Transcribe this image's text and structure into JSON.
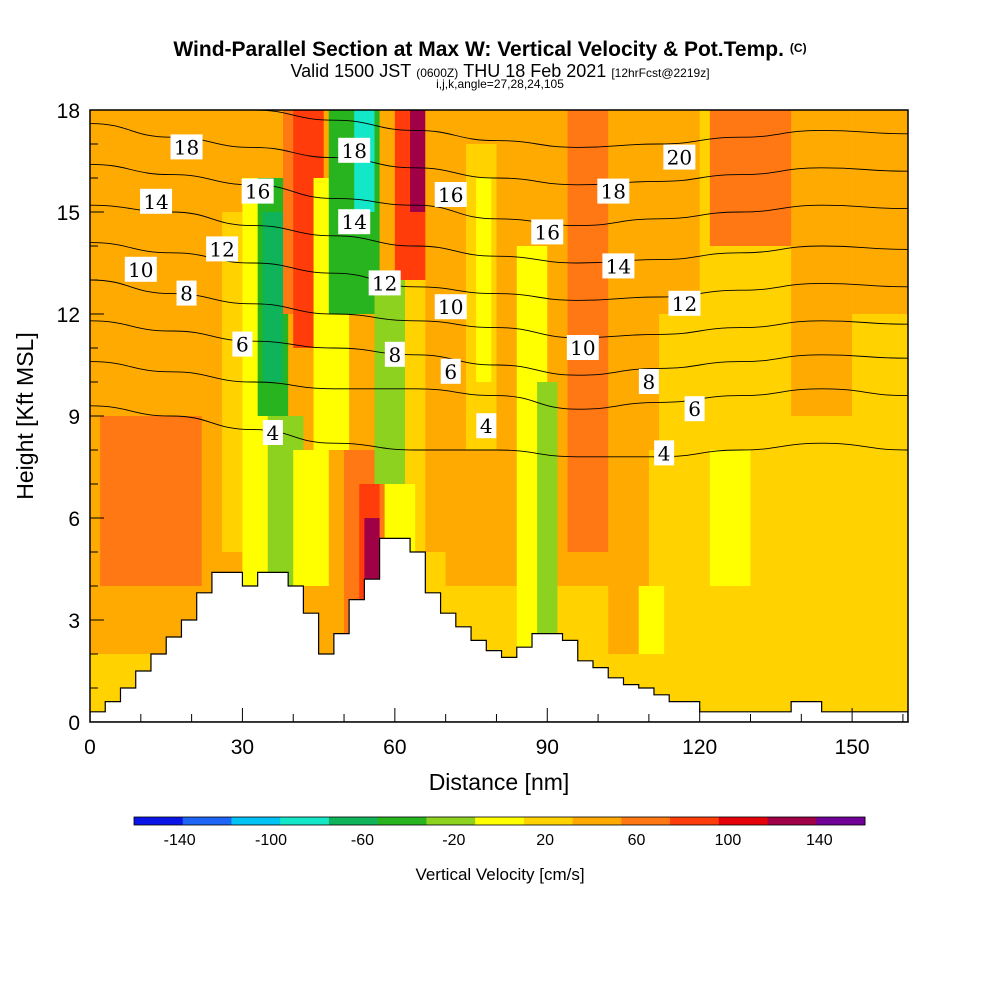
{
  "title": {
    "main": "Wind-Parallel Section at Max W: Vertical Velocity & Pot.Temp.",
    "main_suffix": "(C)",
    "valid_a": "Valid 1500 JST",
    "valid_b": "(0600Z)",
    "valid_c": "THU 18 Feb 2021",
    "valid_d": "[12hrFcst@2219z]",
    "indices": "i,j,k,angle=27,28,24,105"
  },
  "chart_data": {
    "type": "contour",
    "xlabel": "Distance [nm]",
    "ylabel": "Height [Kft MSL]",
    "xlim": [
      0,
      161
    ],
    "ylim": [
      0,
      18
    ],
    "x_ticks": [
      "0",
      "30",
      "60",
      "90",
      "120",
      "150"
    ],
    "y_ticks": [
      "0",
      "3",
      "6",
      "9",
      "12",
      "15",
      "18"
    ],
    "x_tick_values": [
      0,
      30,
      60,
      90,
      120,
      150
    ],
    "y_tick_values": [
      0,
      3,
      6,
      9,
      12,
      15,
      18
    ],
    "colorbar": {
      "label": "Vertical Velocity [cm/s]",
      "tick_labels": [
        "-140",
        "-100",
        "-60",
        "-20",
        "20",
        "60",
        "100",
        "140"
      ],
      "tick_values": [
        -140,
        -100,
        -60,
        -20,
        20,
        60,
        100,
        140
      ],
      "range": [
        -160,
        160
      ],
      "step": 20,
      "colors": [
        "#0a14e6",
        "#1e64f5",
        "#00c3f5",
        "#14e6c8",
        "#0fb45a",
        "#28b41e",
        "#8cd21e",
        "#ffff00",
        "#ffd200",
        "#ffaa00",
        "#ff7814",
        "#ff3c0a",
        "#e6000a",
        "#a00046",
        "#6e0096"
      ]
    },
    "terrain": {
      "x": [
        0,
        3,
        6,
        9,
        12,
        15,
        18,
        21,
        24,
        27,
        30,
        33,
        36,
        39,
        42,
        45,
        48,
        51,
        54,
        57,
        60,
        63,
        66,
        69,
        72,
        75,
        78,
        81,
        84,
        87,
        90,
        93,
        96,
        99,
        102,
        105,
        108,
        111,
        114,
        117,
        120,
        123,
        126,
        129,
        132,
        135,
        138,
        141,
        144,
        147,
        150,
        153,
        156,
        159,
        161
      ],
      "y": [
        0.3,
        0.6,
        1.0,
        1.5,
        2.0,
        2.5,
        3.0,
        3.8,
        4.4,
        4.4,
        4.0,
        4.4,
        4.4,
        4.0,
        3.2,
        2.0,
        2.6,
        3.6,
        4.2,
        5.4,
        5.4,
        5.0,
        3.8,
        3.2,
        2.8,
        2.4,
        2.1,
        1.9,
        2.2,
        2.6,
        2.6,
        2.4,
        1.8,
        1.6,
        1.3,
        1.1,
        1.0,
        0.8,
        0.6,
        0.6,
        0.3,
        0.3,
        0.3,
        0.3,
        0.3,
        0.3,
        0.6,
        0.6,
        0.3,
        0.3,
        0.3,
        0.3,
        0.3,
        0.3,
        0.3
      ]
    },
    "fill_cells": [
      {
        "x": [
          0,
          161
        ],
        "y": [
          0,
          18
        ],
        "w": 0
      },
      {
        "x": [
          0,
          60
        ],
        "y": [
          2,
          18
        ],
        "w": 20
      },
      {
        "x": [
          70,
          120
        ],
        "y": [
          4,
          18
        ],
        "w": 20
      },
      {
        "x": [
          2,
          22
        ],
        "y": [
          4,
          9
        ],
        "w": 40
      },
      {
        "x": [
          20,
          28
        ],
        "y": [
          0,
          4
        ],
        "w": 20
      },
      {
        "x": [
          26,
          31
        ],
        "y": [
          5,
          15
        ],
        "w": 0
      },
      {
        "x": [
          30,
          35
        ],
        "y": [
          3,
          16
        ],
        "w": -20
      },
      {
        "x": [
          33,
          39
        ],
        "y": [
          9,
          16
        ],
        "w": -60
      },
      {
        "x": [
          34,
          38
        ],
        "y": [
          10,
          15
        ],
        "w": -80
      },
      {
        "x": [
          38,
          44
        ],
        "y": [
          12,
          18
        ],
        "w": 40
      },
      {
        "x": [
          40,
          46
        ],
        "y": [
          11,
          18
        ],
        "w": 60
      },
      {
        "x": [
          35,
          42
        ],
        "y": [
          4,
          9
        ],
        "w": -40
      },
      {
        "x": [
          40,
          47
        ],
        "y": [
          4,
          8
        ],
        "w": -20
      },
      {
        "x": [
          44,
          51
        ],
        "y": [
          8,
          16
        ],
        "w": -20
      },
      {
        "x": [
          47,
          57
        ],
        "y": [
          12,
          18
        ],
        "w": -60
      },
      {
        "x": [
          52,
          56
        ],
        "y": [
          15,
          18
        ],
        "w": -100
      },
      {
        "x": [
          50,
          58
        ],
        "y": [
          2,
          8
        ],
        "w": 40
      },
      {
        "x": [
          53,
          57
        ],
        "y": [
          3,
          7
        ],
        "w": 60
      },
      {
        "x": [
          54,
          57
        ],
        "y": [
          3,
          6
        ],
        "w": 100
      },
      {
        "x": [
          56,
          62
        ],
        "y": [
          7,
          13
        ],
        "w": -40
      },
      {
        "x": [
          58,
          64
        ],
        "y": [
          3,
          7
        ],
        "w": -20
      },
      {
        "x": [
          60,
          67
        ],
        "y": [
          13,
          18
        ],
        "w": 60
      },
      {
        "x": [
          63,
          66
        ],
        "y": [
          15,
          18
        ],
        "w": 100
      },
      {
        "x": [
          66,
          70
        ],
        "y": [
          5,
          18
        ],
        "w": 20
      },
      {
        "x": [
          74,
          80
        ],
        "y": [
          8,
          17
        ],
        "w": 0
      },
      {
        "x": [
          76,
          79
        ],
        "y": [
          10,
          16
        ],
        "w": -20
      },
      {
        "x": [
          84,
          90
        ],
        "y": [
          2,
          14
        ],
        "w": -20
      },
      {
        "x": [
          88,
          92
        ],
        "y": [
          2,
          10
        ],
        "w": -40
      },
      {
        "x": [
          94,
          104
        ],
        "y": [
          5,
          18
        ],
        "w": 40
      },
      {
        "x": [
          102,
          110
        ],
        "y": [
          2,
          18
        ],
        "w": 20
      },
      {
        "x": [
          110,
          161
        ],
        "y": [
          0,
          8
        ],
        "w": 0
      },
      {
        "x": [
          112,
          161
        ],
        "y": [
          8,
          12
        ],
        "w": 0
      },
      {
        "x": [
          108,
          113
        ],
        "y": [
          2,
          4
        ],
        "w": -20
      },
      {
        "x": [
          122,
          130
        ],
        "y": [
          4,
          8
        ],
        "w": -20
      },
      {
        "x": [
          122,
          140
        ],
        "y": [
          14,
          18
        ],
        "w": 40
      },
      {
        "x": [
          138,
          150
        ],
        "y": [
          9,
          18
        ],
        "w": 20
      },
      {
        "x": [
          150,
          161
        ],
        "y": [
          12,
          18
        ],
        "w": 20
      }
    ],
    "theta_contours": [
      {
        "label": "4",
        "values": [
          9.3,
          9.0,
          8.6,
          8.2,
          8.0,
          8.0,
          7.8,
          7.8,
          8.0,
          8.2,
          8.0
        ]
      },
      {
        "label": "6",
        "values": [
          10.6,
          10.3,
          10.0,
          9.8,
          9.8,
          9.6,
          9.2,
          9.4,
          9.6,
          9.8,
          9.6
        ]
      },
      {
        "label": "8",
        "values": [
          11.8,
          11.5,
          11.2,
          11.0,
          10.8,
          10.5,
          10.2,
          10.4,
          10.6,
          10.8,
          10.7
        ]
      },
      {
        "label": "10",
        "values": [
          13.0,
          12.6,
          12.3,
          12.0,
          11.8,
          11.6,
          11.3,
          11.4,
          11.6,
          11.8,
          11.7
        ]
      },
      {
        "label": "12",
        "values": [
          14.1,
          13.8,
          13.5,
          13.2,
          12.8,
          12.6,
          12.4,
          12.5,
          12.7,
          12.9,
          12.8
        ]
      },
      {
        "label": "14",
        "values": [
          15.2,
          15.0,
          14.6,
          14.3,
          14.0,
          13.7,
          13.5,
          13.6,
          13.8,
          14.0,
          13.9
        ]
      },
      {
        "label": "16",
        "values": [
          16.4,
          16.1,
          15.8,
          15.4,
          15.2,
          14.8,
          14.6,
          14.8,
          15.0,
          15.2,
          15.1
        ]
      },
      {
        "label": "18",
        "values": [
          17.6,
          17.2,
          16.9,
          16.6,
          16.3,
          16.0,
          15.8,
          15.9,
          16.1,
          16.3,
          16.2
        ]
      },
      {
        "label": "20",
        "values": [
          18.4,
          18.3,
          18.0,
          17.7,
          17.4,
          17.1,
          16.9,
          17.0,
          17.2,
          17.4,
          17.3
        ]
      }
    ],
    "theta_contour_x": [
      0,
      16,
      32,
      48,
      64,
      80,
      96,
      112,
      128,
      144,
      161
    ],
    "labels": [
      {
        "text": "18",
        "x": 19,
        "y": 16.9
      },
      {
        "text": "14",
        "x": 13,
        "y": 15.3
      },
      {
        "text": "10",
        "x": 10,
        "y": 13.3
      },
      {
        "text": "8",
        "x": 19,
        "y": 12.6
      },
      {
        "text": "12",
        "x": 26,
        "y": 13.9
      },
      {
        "text": "16",
        "x": 33,
        "y": 15.6
      },
      {
        "text": "6",
        "x": 30,
        "y": 11.1
      },
      {
        "text": "4",
        "x": 36,
        "y": 8.5
      },
      {
        "text": "18",
        "x": 52,
        "y": 16.8
      },
      {
        "text": "14",
        "x": 52,
        "y": 14.7
      },
      {
        "text": "12",
        "x": 58,
        "y": 12.9
      },
      {
        "text": "8",
        "x": 60,
        "y": 10.8
      },
      {
        "text": "16",
        "x": 71,
        "y": 15.5
      },
      {
        "text": "10",
        "x": 71,
        "y": 12.2
      },
      {
        "text": "6",
        "x": 71,
        "y": 10.3
      },
      {
        "text": "4",
        "x": 78,
        "y": 8.7
      },
      {
        "text": "16",
        "x": 90,
        "y": 14.4
      },
      {
        "text": "10",
        "x": 97,
        "y": 11.0
      },
      {
        "text": "20",
        "x": 116,
        "y": 16.6
      },
      {
        "text": "18",
        "x": 103,
        "y": 15.6
      },
      {
        "text": "14",
        "x": 104,
        "y": 13.4
      },
      {
        "text": "12",
        "x": 117,
        "y": 12.3
      },
      {
        "text": "8",
        "x": 110,
        "y": 10.0
      },
      {
        "text": "6",
        "x": 119,
        "y": 9.2
      },
      {
        "text": "4",
        "x": 113,
        "y": 7.9
      }
    ]
  }
}
